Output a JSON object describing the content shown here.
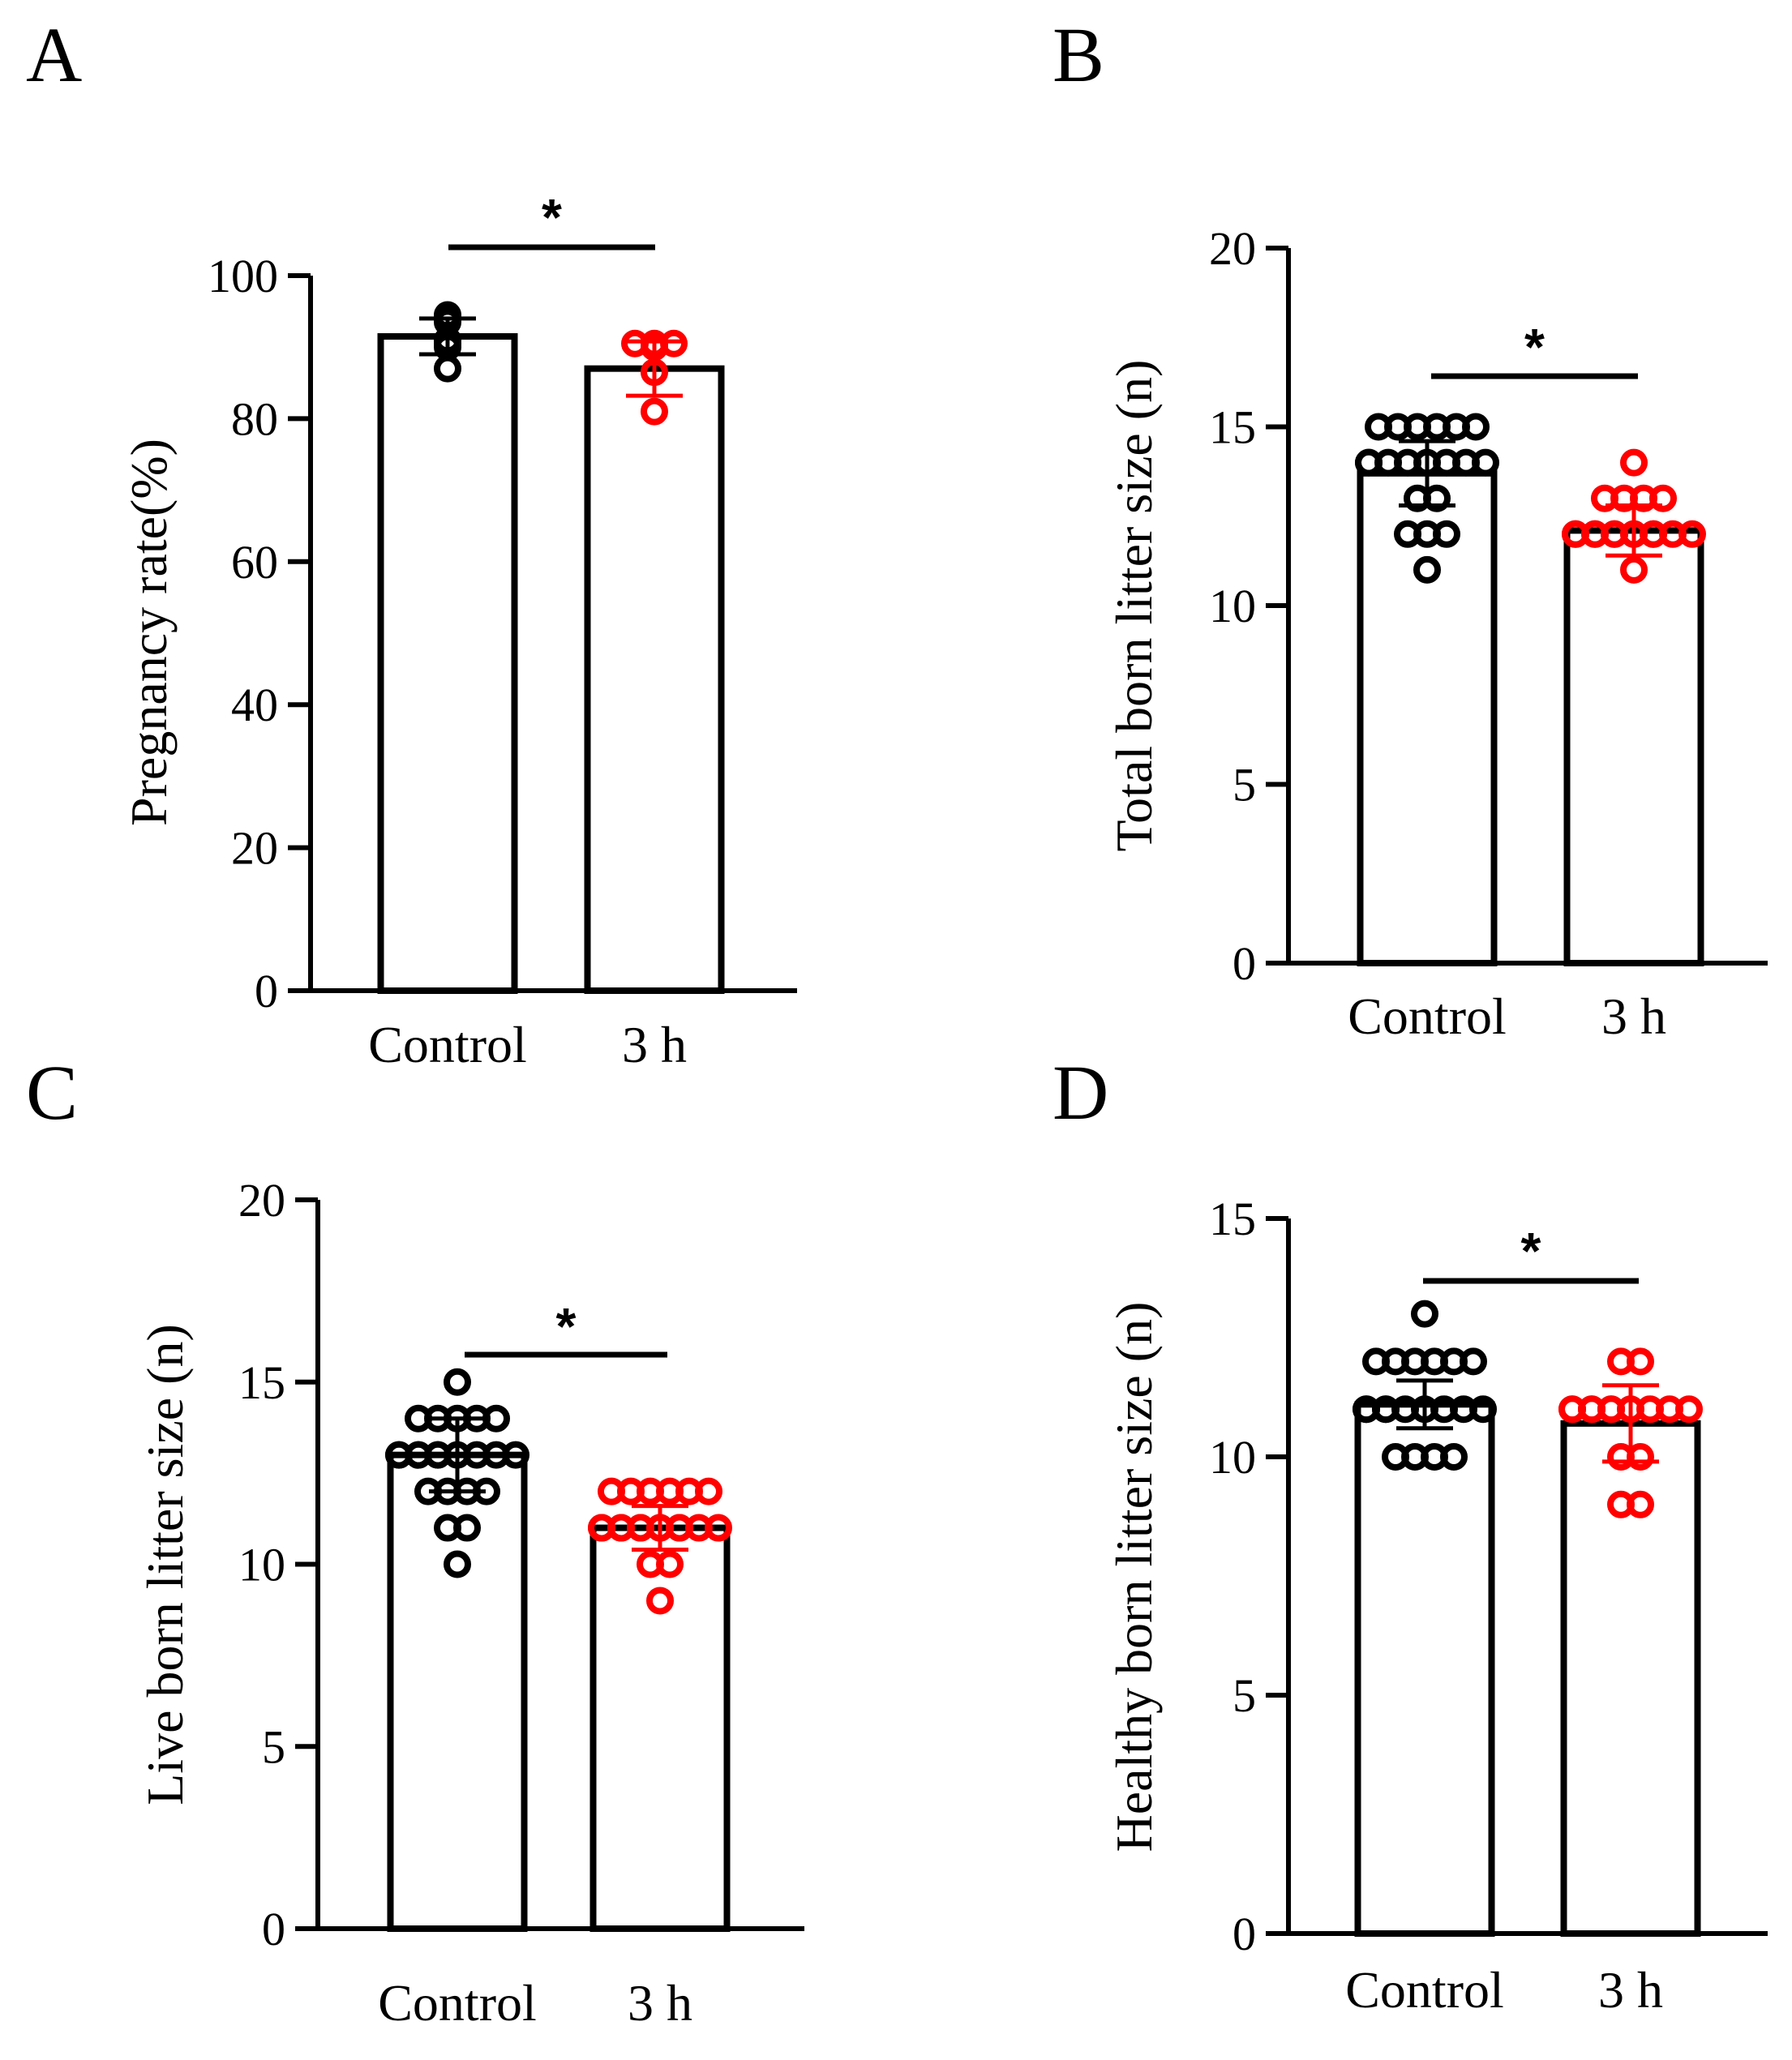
{
  "colors": {
    "control": "#000000",
    "treatment": "#ff0000",
    "axis": "#000000",
    "bar_fill": "#ffffff"
  },
  "chart_data": [
    {
      "panel": "A",
      "type": "bar",
      "ylabel": "Pregnancy rate(%)",
      "ylim": [
        0,
        100
      ],
      "yticks": [
        0,
        20,
        40,
        60,
        80,
        100
      ],
      "categories": [
        "Control",
        "3 h"
      ],
      "means": [
        91.5,
        87.0
      ],
      "errors": [
        2.5,
        3.8
      ],
      "significance": "*",
      "points": [
        [
          94.5,
          94.0,
          93.5,
          91.0,
          90.5,
          90.0,
          87.0
        ],
        [
          90.5,
          90.5,
          90.5,
          90.0,
          86.5,
          81.0
        ]
      ]
    },
    {
      "panel": "B",
      "type": "bar",
      "ylabel": "Total born litter size (n)",
      "ylim": [
        0,
        20
      ],
      "yticks": [
        0,
        5,
        10,
        15,
        20
      ],
      "categories": [
        "Control",
        "3 h"
      ],
      "means": [
        13.7,
        12.1
      ],
      "errors": [
        0.9,
        0.7
      ],
      "significance": "*",
      "points": [
        [
          15,
          15,
          15,
          15,
          15,
          15,
          14,
          14,
          14,
          14,
          14,
          14,
          14,
          14,
          13,
          13,
          12,
          12,
          12,
          11
        ],
        [
          14,
          13,
          13,
          13,
          13,
          12,
          12,
          12,
          12,
          12,
          12,
          12,
          12,
          12,
          12,
          12,
          12,
          11
        ]
      ]
    },
    {
      "panel": "C",
      "type": "bar",
      "ylabel": "Live born litter size (n)",
      "ylim": [
        0,
        20
      ],
      "yticks": [
        0,
        5,
        10,
        15,
        20
      ],
      "categories": [
        "Control",
        "3 h"
      ],
      "means": [
        13.0,
        11.0
      ],
      "errors": [
        1.0,
        0.6
      ],
      "significance": "*",
      "points": [
        [
          15,
          14,
          14,
          14,
          14,
          14,
          13,
          13,
          13,
          13,
          13,
          13,
          13,
          13,
          13,
          13,
          12,
          12,
          12,
          12,
          11,
          11,
          10
        ],
        [
          12,
          12,
          12,
          12,
          12,
          12,
          11,
          11,
          11,
          11,
          11,
          11,
          11,
          11,
          11,
          11,
          11,
          11,
          10,
          10,
          9
        ]
      ]
    },
    {
      "panel": "D",
      "type": "bar",
      "ylabel": "Healthy born litter size (n)",
      "ylim": [
        0,
        15
      ],
      "yticks": [
        0,
        5,
        10,
        15
      ],
      "categories": [
        "Control",
        "3 h"
      ],
      "means": [
        11.1,
        10.7
      ],
      "errors": [
        0.5,
        0.8
      ],
      "significance": "*",
      "points": [
        [
          13,
          12,
          12,
          12,
          12,
          12,
          12,
          11,
          11,
          11,
          11,
          11,
          11,
          11,
          11,
          11,
          10,
          10,
          10,
          10
        ],
        [
          12,
          12,
          11,
          11,
          11,
          11,
          11,
          11,
          11,
          11,
          11,
          11,
          10,
          10,
          9,
          9
        ]
      ]
    }
  ]
}
